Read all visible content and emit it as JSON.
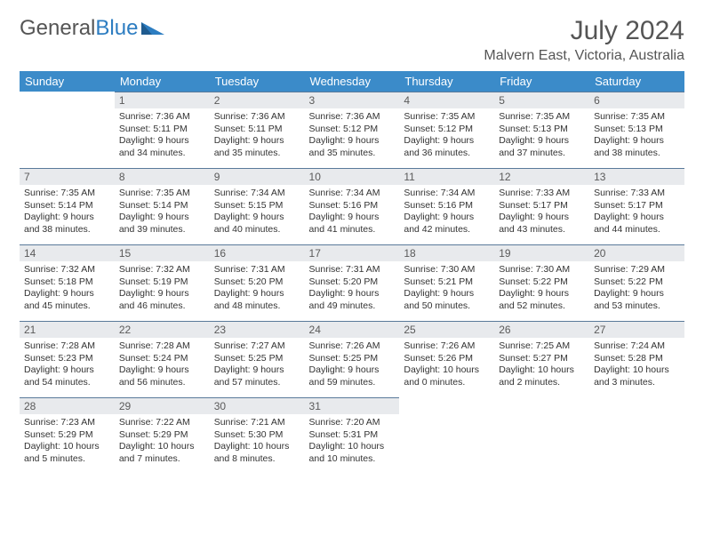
{
  "logo": {
    "text1": "General",
    "text2": "Blue"
  },
  "title": "July 2024",
  "location": "Malvern East, Victoria, Australia",
  "colors": {
    "header_bg": "#3b8bc9",
    "header_text": "#ffffff",
    "daynum_bg": "#e8eaed",
    "daynum_border": "#5a7a9a",
    "text": "#333333",
    "title": "#555555"
  },
  "week_header": [
    "Sunday",
    "Monday",
    "Tuesday",
    "Wednesday",
    "Thursday",
    "Friday",
    "Saturday"
  ],
  "weeks": [
    [
      null,
      {
        "n": "1",
        "sunrise": "7:36 AM",
        "sunset": "5:11 PM",
        "daylight": "9 hours and 34 minutes."
      },
      {
        "n": "2",
        "sunrise": "7:36 AM",
        "sunset": "5:11 PM",
        "daylight": "9 hours and 35 minutes."
      },
      {
        "n": "3",
        "sunrise": "7:36 AM",
        "sunset": "5:12 PM",
        "daylight": "9 hours and 35 minutes."
      },
      {
        "n": "4",
        "sunrise": "7:35 AM",
        "sunset": "5:12 PM",
        "daylight": "9 hours and 36 minutes."
      },
      {
        "n": "5",
        "sunrise": "7:35 AM",
        "sunset": "5:13 PM",
        "daylight": "9 hours and 37 minutes."
      },
      {
        "n": "6",
        "sunrise": "7:35 AM",
        "sunset": "5:13 PM",
        "daylight": "9 hours and 38 minutes."
      }
    ],
    [
      {
        "n": "7",
        "sunrise": "7:35 AM",
        "sunset": "5:14 PM",
        "daylight": "9 hours and 38 minutes."
      },
      {
        "n": "8",
        "sunrise": "7:35 AM",
        "sunset": "5:14 PM",
        "daylight": "9 hours and 39 minutes."
      },
      {
        "n": "9",
        "sunrise": "7:34 AM",
        "sunset": "5:15 PM",
        "daylight": "9 hours and 40 minutes."
      },
      {
        "n": "10",
        "sunrise": "7:34 AM",
        "sunset": "5:16 PM",
        "daylight": "9 hours and 41 minutes."
      },
      {
        "n": "11",
        "sunrise": "7:34 AM",
        "sunset": "5:16 PM",
        "daylight": "9 hours and 42 minutes."
      },
      {
        "n": "12",
        "sunrise": "7:33 AM",
        "sunset": "5:17 PM",
        "daylight": "9 hours and 43 minutes."
      },
      {
        "n": "13",
        "sunrise": "7:33 AM",
        "sunset": "5:17 PM",
        "daylight": "9 hours and 44 minutes."
      }
    ],
    [
      {
        "n": "14",
        "sunrise": "7:32 AM",
        "sunset": "5:18 PM",
        "daylight": "9 hours and 45 minutes."
      },
      {
        "n": "15",
        "sunrise": "7:32 AM",
        "sunset": "5:19 PM",
        "daylight": "9 hours and 46 minutes."
      },
      {
        "n": "16",
        "sunrise": "7:31 AM",
        "sunset": "5:20 PM",
        "daylight": "9 hours and 48 minutes."
      },
      {
        "n": "17",
        "sunrise": "7:31 AM",
        "sunset": "5:20 PM",
        "daylight": "9 hours and 49 minutes."
      },
      {
        "n": "18",
        "sunrise": "7:30 AM",
        "sunset": "5:21 PM",
        "daylight": "9 hours and 50 minutes."
      },
      {
        "n": "19",
        "sunrise": "7:30 AM",
        "sunset": "5:22 PM",
        "daylight": "9 hours and 52 minutes."
      },
      {
        "n": "20",
        "sunrise": "7:29 AM",
        "sunset": "5:22 PM",
        "daylight": "9 hours and 53 minutes."
      }
    ],
    [
      {
        "n": "21",
        "sunrise": "7:28 AM",
        "sunset": "5:23 PM",
        "daylight": "9 hours and 54 minutes."
      },
      {
        "n": "22",
        "sunrise": "7:28 AM",
        "sunset": "5:24 PM",
        "daylight": "9 hours and 56 minutes."
      },
      {
        "n": "23",
        "sunrise": "7:27 AM",
        "sunset": "5:25 PM",
        "daylight": "9 hours and 57 minutes."
      },
      {
        "n": "24",
        "sunrise": "7:26 AM",
        "sunset": "5:25 PM",
        "daylight": "9 hours and 59 minutes."
      },
      {
        "n": "25",
        "sunrise": "7:26 AM",
        "sunset": "5:26 PM",
        "daylight": "10 hours and 0 minutes."
      },
      {
        "n": "26",
        "sunrise": "7:25 AM",
        "sunset": "5:27 PM",
        "daylight": "10 hours and 2 minutes."
      },
      {
        "n": "27",
        "sunrise": "7:24 AM",
        "sunset": "5:28 PM",
        "daylight": "10 hours and 3 minutes."
      }
    ],
    [
      {
        "n": "28",
        "sunrise": "7:23 AM",
        "sunset": "5:29 PM",
        "daylight": "10 hours and 5 minutes."
      },
      {
        "n": "29",
        "sunrise": "7:22 AM",
        "sunset": "5:29 PM",
        "daylight": "10 hours and 7 minutes."
      },
      {
        "n": "30",
        "sunrise": "7:21 AM",
        "sunset": "5:30 PM",
        "daylight": "10 hours and 8 minutes."
      },
      {
        "n": "31",
        "sunrise": "7:20 AM",
        "sunset": "5:31 PM",
        "daylight": "10 hours and 10 minutes."
      },
      null,
      null,
      null
    ]
  ]
}
